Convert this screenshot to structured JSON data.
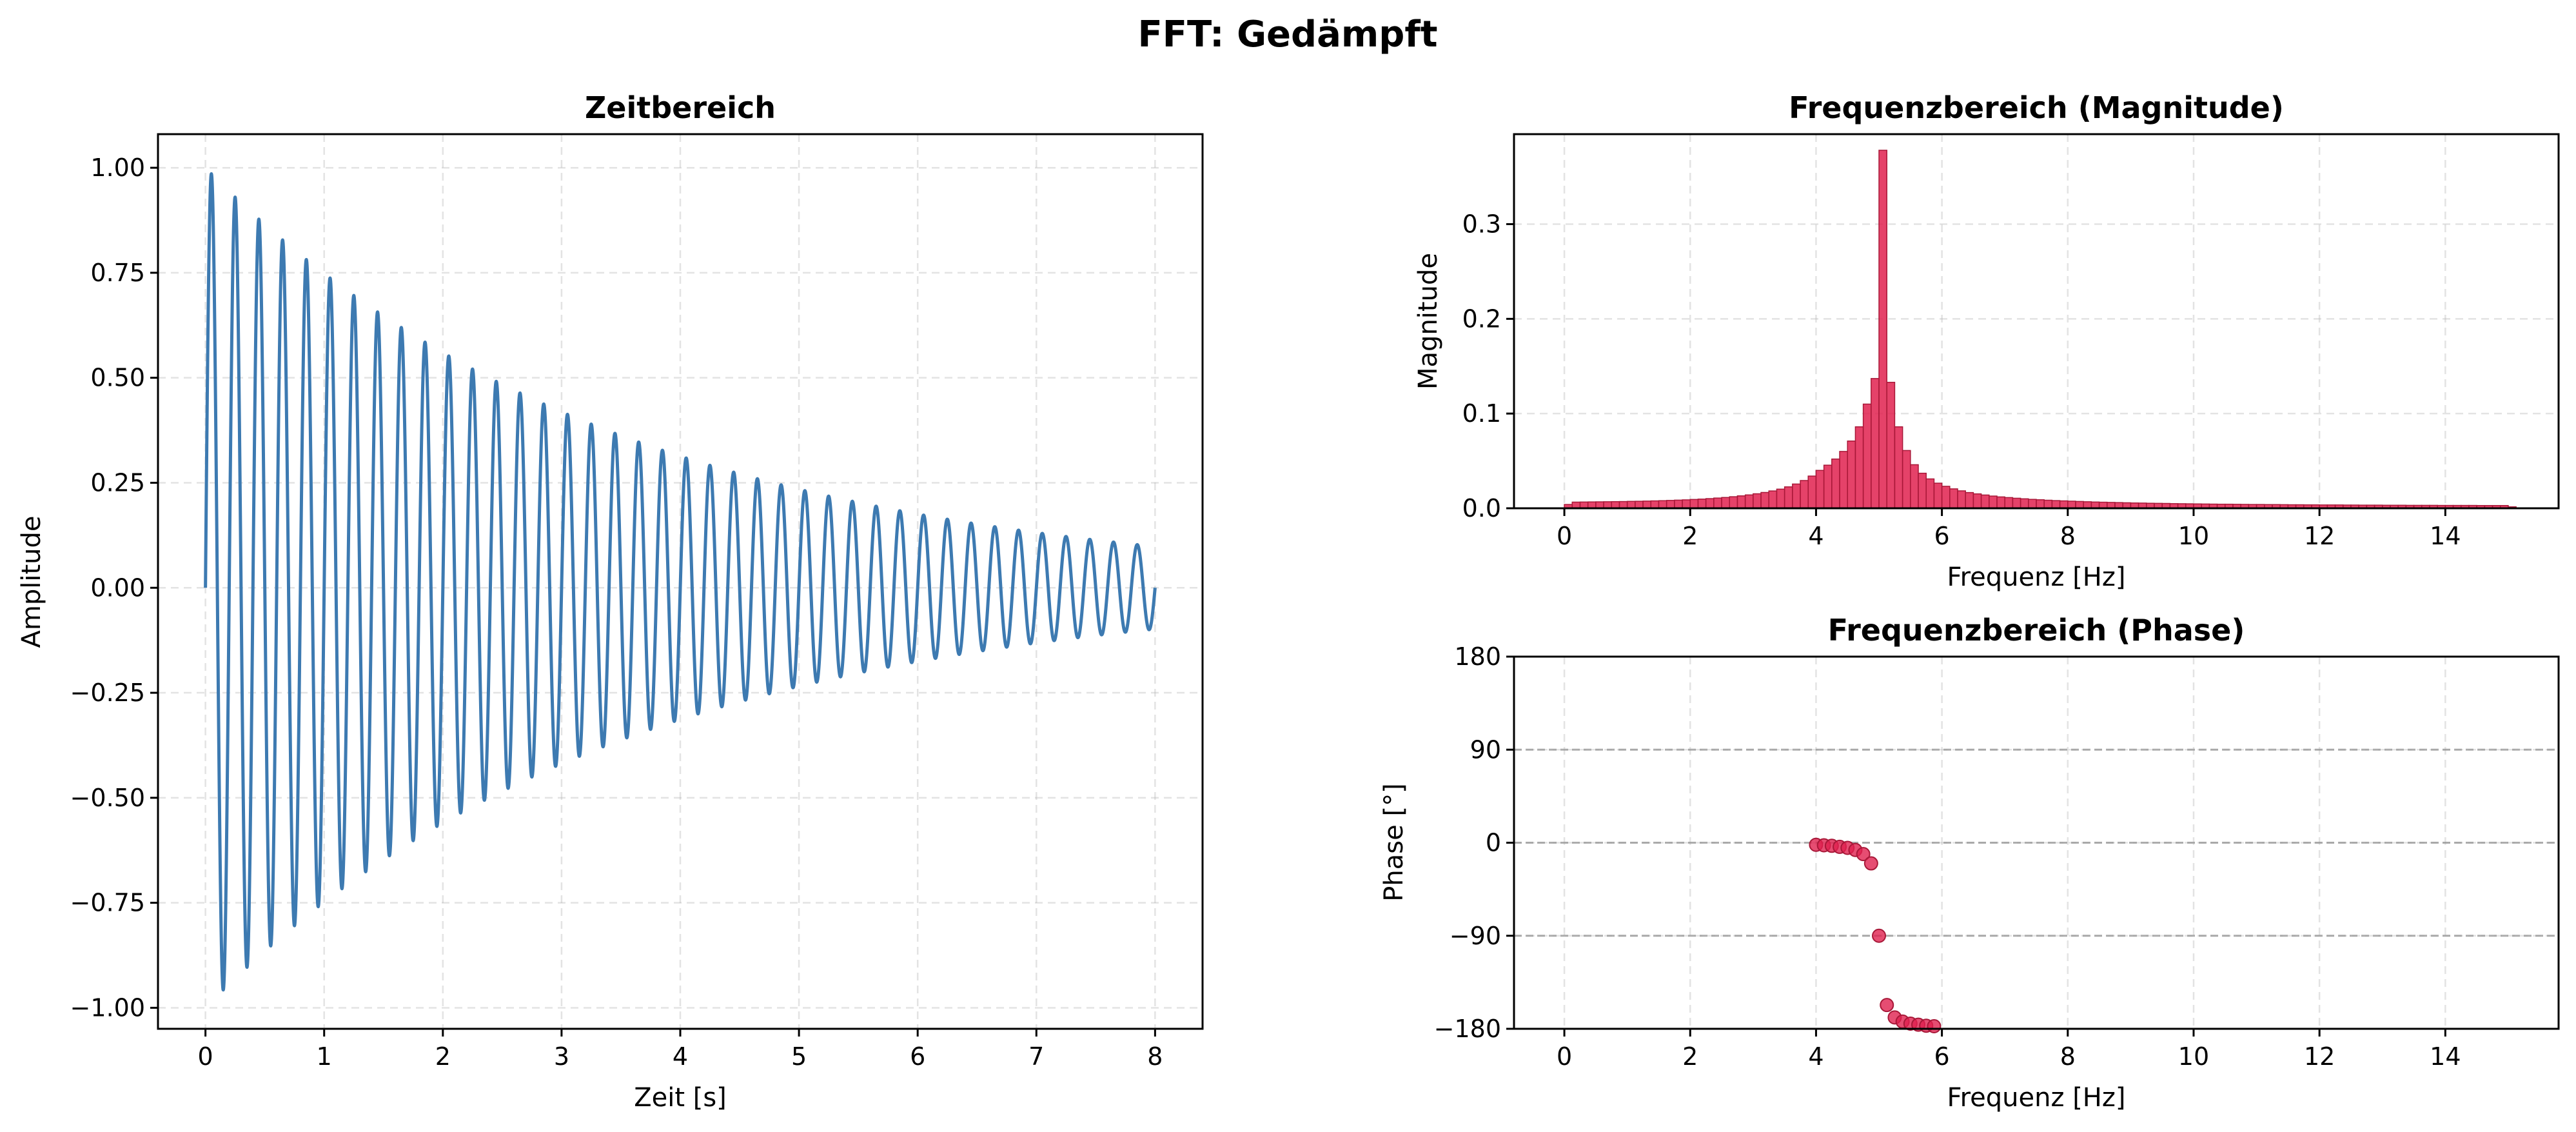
{
  "figure": {
    "title": "FFT: Gedämpft"
  },
  "colors": {
    "time": "#3d7ab1",
    "freq": "#e0214f",
    "freq_edge": "#a81838"
  },
  "chart_data": [
    {
      "type": "line",
      "title": "Zeitbereich",
      "xlabel": "Zeit [s]",
      "ylabel": "Amplitude",
      "xlim": [
        -0.4,
        8.4
      ],
      "ylim": [
        -1.05,
        1.08
      ],
      "xticks": [
        0,
        1,
        2,
        3,
        4,
        5,
        6,
        7,
        8
      ],
      "xtick_labels": [
        "0",
        "1",
        "2",
        "3",
        "4",
        "5",
        "6",
        "7",
        "8"
      ],
      "yticks": [
        -1.0,
        -0.75,
        -0.5,
        -0.25,
        0.0,
        0.25,
        0.5,
        0.75,
        1.0
      ],
      "ytick_labels": [
        "−1.00",
        "−0.75",
        "−0.50",
        "−0.25",
        "0.00",
        "0.25",
        "0.50",
        "0.75",
        "1.00"
      ],
      "grid": true,
      "signal": {
        "function": "exp(-decay*t)*sin(2*pi*f*t)",
        "frequency_hz": 5,
        "decay_per_s": 0.29,
        "t_start": 0,
        "t_end": 8
      }
    },
    {
      "type": "bar",
      "title": "Frequenzbereich (Magnitude)",
      "xlabel": "Frequenz [Hz]",
      "ylabel": "Magnitude",
      "xlim": [
        -0.8,
        15.8
      ],
      "ylim": [
        0,
        0.395
      ],
      "xticks": [
        0,
        2,
        4,
        6,
        8,
        10,
        12,
        14
      ],
      "xtick_labels": [
        "0",
        "2",
        "4",
        "6",
        "8",
        "10",
        "12",
        "14"
      ],
      "yticks": [
        0.0,
        0.1,
        0.2,
        0.3
      ],
      "ytick_labels": [
        "0.0",
        "0.1",
        "0.2",
        "0.3"
      ],
      "grid": true,
      "bin_width_hz": 0.125,
      "x": [
        0.0,
        0.125,
        0.25,
        0.375,
        0.5,
        0.625,
        0.75,
        0.875,
        1.0,
        1.125,
        1.25,
        1.375,
        1.5,
        1.625,
        1.75,
        1.875,
        2.0,
        2.125,
        2.25,
        2.375,
        2.5,
        2.625,
        2.75,
        2.875,
        3.0,
        3.125,
        3.25,
        3.375,
        3.5,
        3.625,
        3.75,
        3.875,
        4.0,
        4.125,
        4.25,
        4.375,
        4.5,
        4.625,
        4.75,
        4.875,
        5.0,
        5.125,
        5.25,
        5.375,
        5.5,
        5.625,
        5.75,
        5.875,
        6.0,
        6.125,
        6.25,
        6.375,
        6.5,
        6.625,
        6.75,
        6.875,
        7.0,
        7.125,
        7.25,
        7.375,
        7.5,
        7.625,
        7.75,
        7.875,
        8.0,
        8.125,
        8.25,
        8.375,
        8.5,
        8.625,
        8.75,
        8.875,
        9.0,
        9.125,
        9.25,
        9.375,
        9.5,
        9.625,
        9.75,
        9.875,
        10.0,
        10.125,
        10.25,
        10.375,
        10.5,
        10.625,
        10.75,
        10.875,
        11.0,
        11.125,
        11.25,
        11.375,
        11.5,
        11.625,
        11.75,
        11.875,
        12.0,
        12.125,
        12.25,
        12.375,
        12.5,
        12.625,
        12.75,
        12.875,
        13.0,
        13.125,
        13.25,
        13.375,
        13.5,
        13.625,
        13.75,
        13.875,
        14.0,
        14.125,
        14.25,
        14.375,
        14.5,
        14.625,
        14.75,
        14.875,
        15.0
      ],
      "values": [
        0.004,
        0.0065,
        0.0066,
        0.0067,
        0.0068,
        0.0069,
        0.007,
        0.0071,
        0.0073,
        0.0074,
        0.0076,
        0.0078,
        0.008,
        0.0083,
        0.0086,
        0.0089,
        0.0093,
        0.0097,
        0.0102,
        0.0108,
        0.0114,
        0.0122,
        0.0131,
        0.0141,
        0.0153,
        0.0167,
        0.0183,
        0.0202,
        0.0226,
        0.0256,
        0.0293,
        0.034,
        0.04,
        0.0455,
        0.052,
        0.06,
        0.071,
        0.086,
        0.11,
        0.137,
        0.378,
        0.133,
        0.086,
        0.061,
        0.046,
        0.037,
        0.031,
        0.0265,
        0.0232,
        0.0205,
        0.0184,
        0.0166,
        0.0152,
        0.014,
        0.0129,
        0.012,
        0.0113,
        0.0106,
        0.01,
        0.0094,
        0.009,
        0.0085,
        0.0081,
        0.0078,
        0.0075,
        0.0072,
        0.0069,
        0.0066,
        0.0064,
        0.0062,
        0.006,
        0.0058,
        0.0056,
        0.0055,
        0.0053,
        0.0052,
        0.0051,
        0.0049,
        0.0048,
        0.0047,
        0.0046,
        0.0045,
        0.0044,
        0.0043,
        0.0043,
        0.0042,
        0.0041,
        0.004,
        0.004,
        0.0039,
        0.0039,
        0.0038,
        0.0037,
        0.0037,
        0.0036,
        0.0036,
        0.0035,
        0.0035,
        0.0035,
        0.0034,
        0.0034,
        0.0033,
        0.0033,
        0.0033,
        0.0032,
        0.0032,
        0.0032,
        0.0031,
        0.0031,
        0.0031,
        0.0031,
        0.003,
        0.003,
        0.003,
        0.003,
        0.003,
        0.0029,
        0.0029,
        0.0029,
        0.0029,
        0.0015
      ]
    },
    {
      "type": "scatter",
      "title": "Frequenzbereich (Phase)",
      "xlabel": "Frequenz [Hz]",
      "ylabel": "Phase [°]",
      "xlim": [
        -0.8,
        15.8
      ],
      "ylim": [
        -180,
        180
      ],
      "xticks": [
        0,
        2,
        4,
        6,
        8,
        10,
        12,
        14
      ],
      "xtick_labels": [
        "0",
        "2",
        "4",
        "6",
        "8",
        "10",
        "12",
        "14"
      ],
      "yticks": [
        -180,
        -90,
        0,
        90,
        180
      ],
      "ytick_labels": [
        "−180",
        "−90",
        "0",
        "90",
        "180"
      ],
      "grid": true,
      "reference_lines": [
        90,
        0,
        -90
      ],
      "x": [
        4.0,
        4.125,
        4.25,
        4.375,
        4.5,
        4.625,
        4.75,
        4.875,
        5.0,
        5.125,
        5.25,
        5.375,
        5.5,
        5.625,
        5.75,
        5.875
      ],
      "values": [
        -2,
        -2.5,
        -3,
        -4,
        -5,
        -7,
        -11,
        -20,
        -90,
        -157,
        -169,
        -173,
        -175,
        -176,
        -177,
        -177.5
      ]
    }
  ]
}
